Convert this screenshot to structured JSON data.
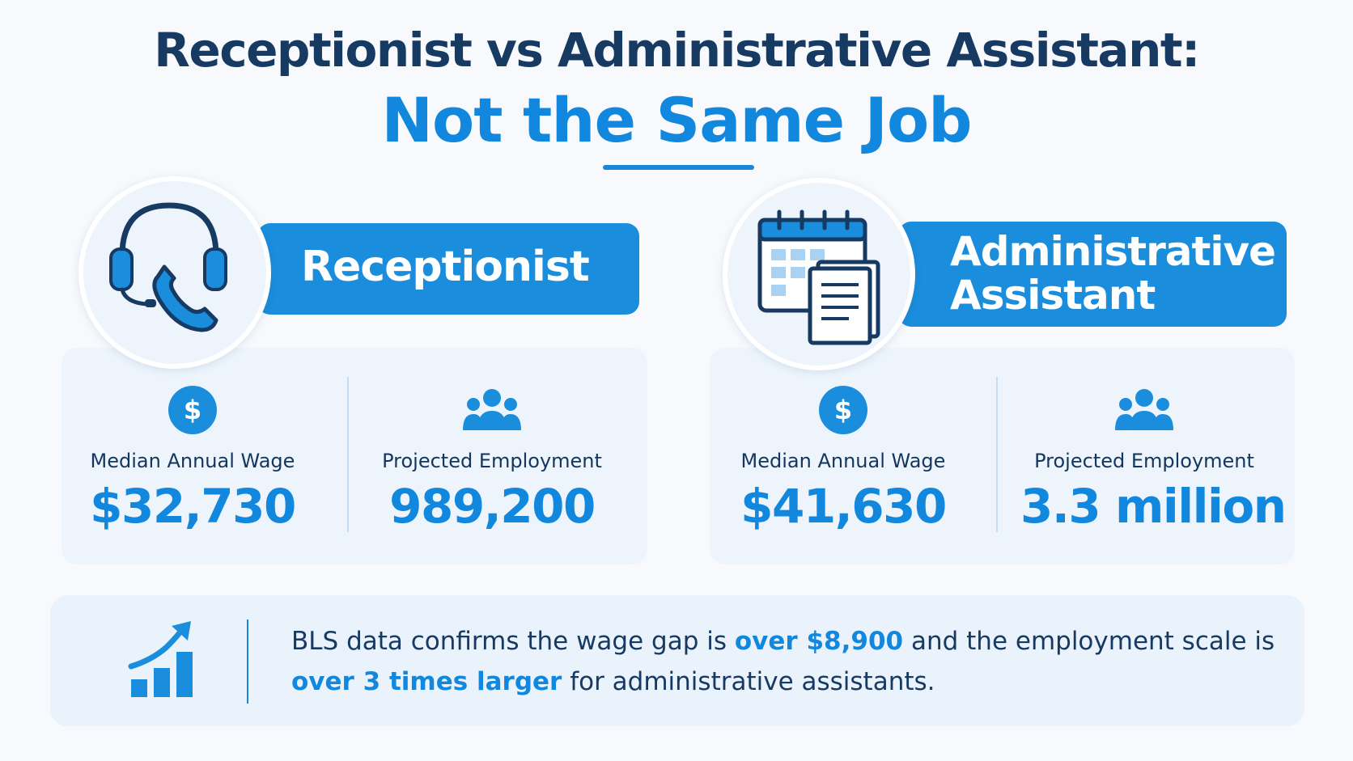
{
  "title": {
    "line1": "Receptionist vs Administrative Assistant:",
    "line2": "Not the Same Job"
  },
  "colors": {
    "accent": "#1188dd",
    "navy": "#173a63",
    "card": "#edf4fb"
  },
  "roles": [
    {
      "name": "Receptionist",
      "icon": "headset-phone-icon",
      "stats": [
        {
          "icon": "dollar-icon",
          "label": "Median Annual Wage",
          "value": "$32,730"
        },
        {
          "icon": "people-icon",
          "label": "Projected Employment",
          "value": "989,200"
        }
      ]
    },
    {
      "name_line1": "Administrative",
      "name_line2": "Assistant",
      "icon": "calendar-document-icon",
      "stats": [
        {
          "icon": "dollar-icon",
          "label": "Median Annual Wage",
          "value": "$41,630"
        },
        {
          "icon": "people-icon",
          "label": "Projected Employment",
          "value": "3.3 million"
        }
      ]
    }
  ],
  "note": {
    "icon": "growth-chart-icon",
    "part1": "BLS data confirms the wage gap is",
    "highlight1": "over $8,900",
    "part2": "and the employment scale is",
    "highlight2": "over 3 times larger",
    "part3": "for administrative assistants."
  }
}
